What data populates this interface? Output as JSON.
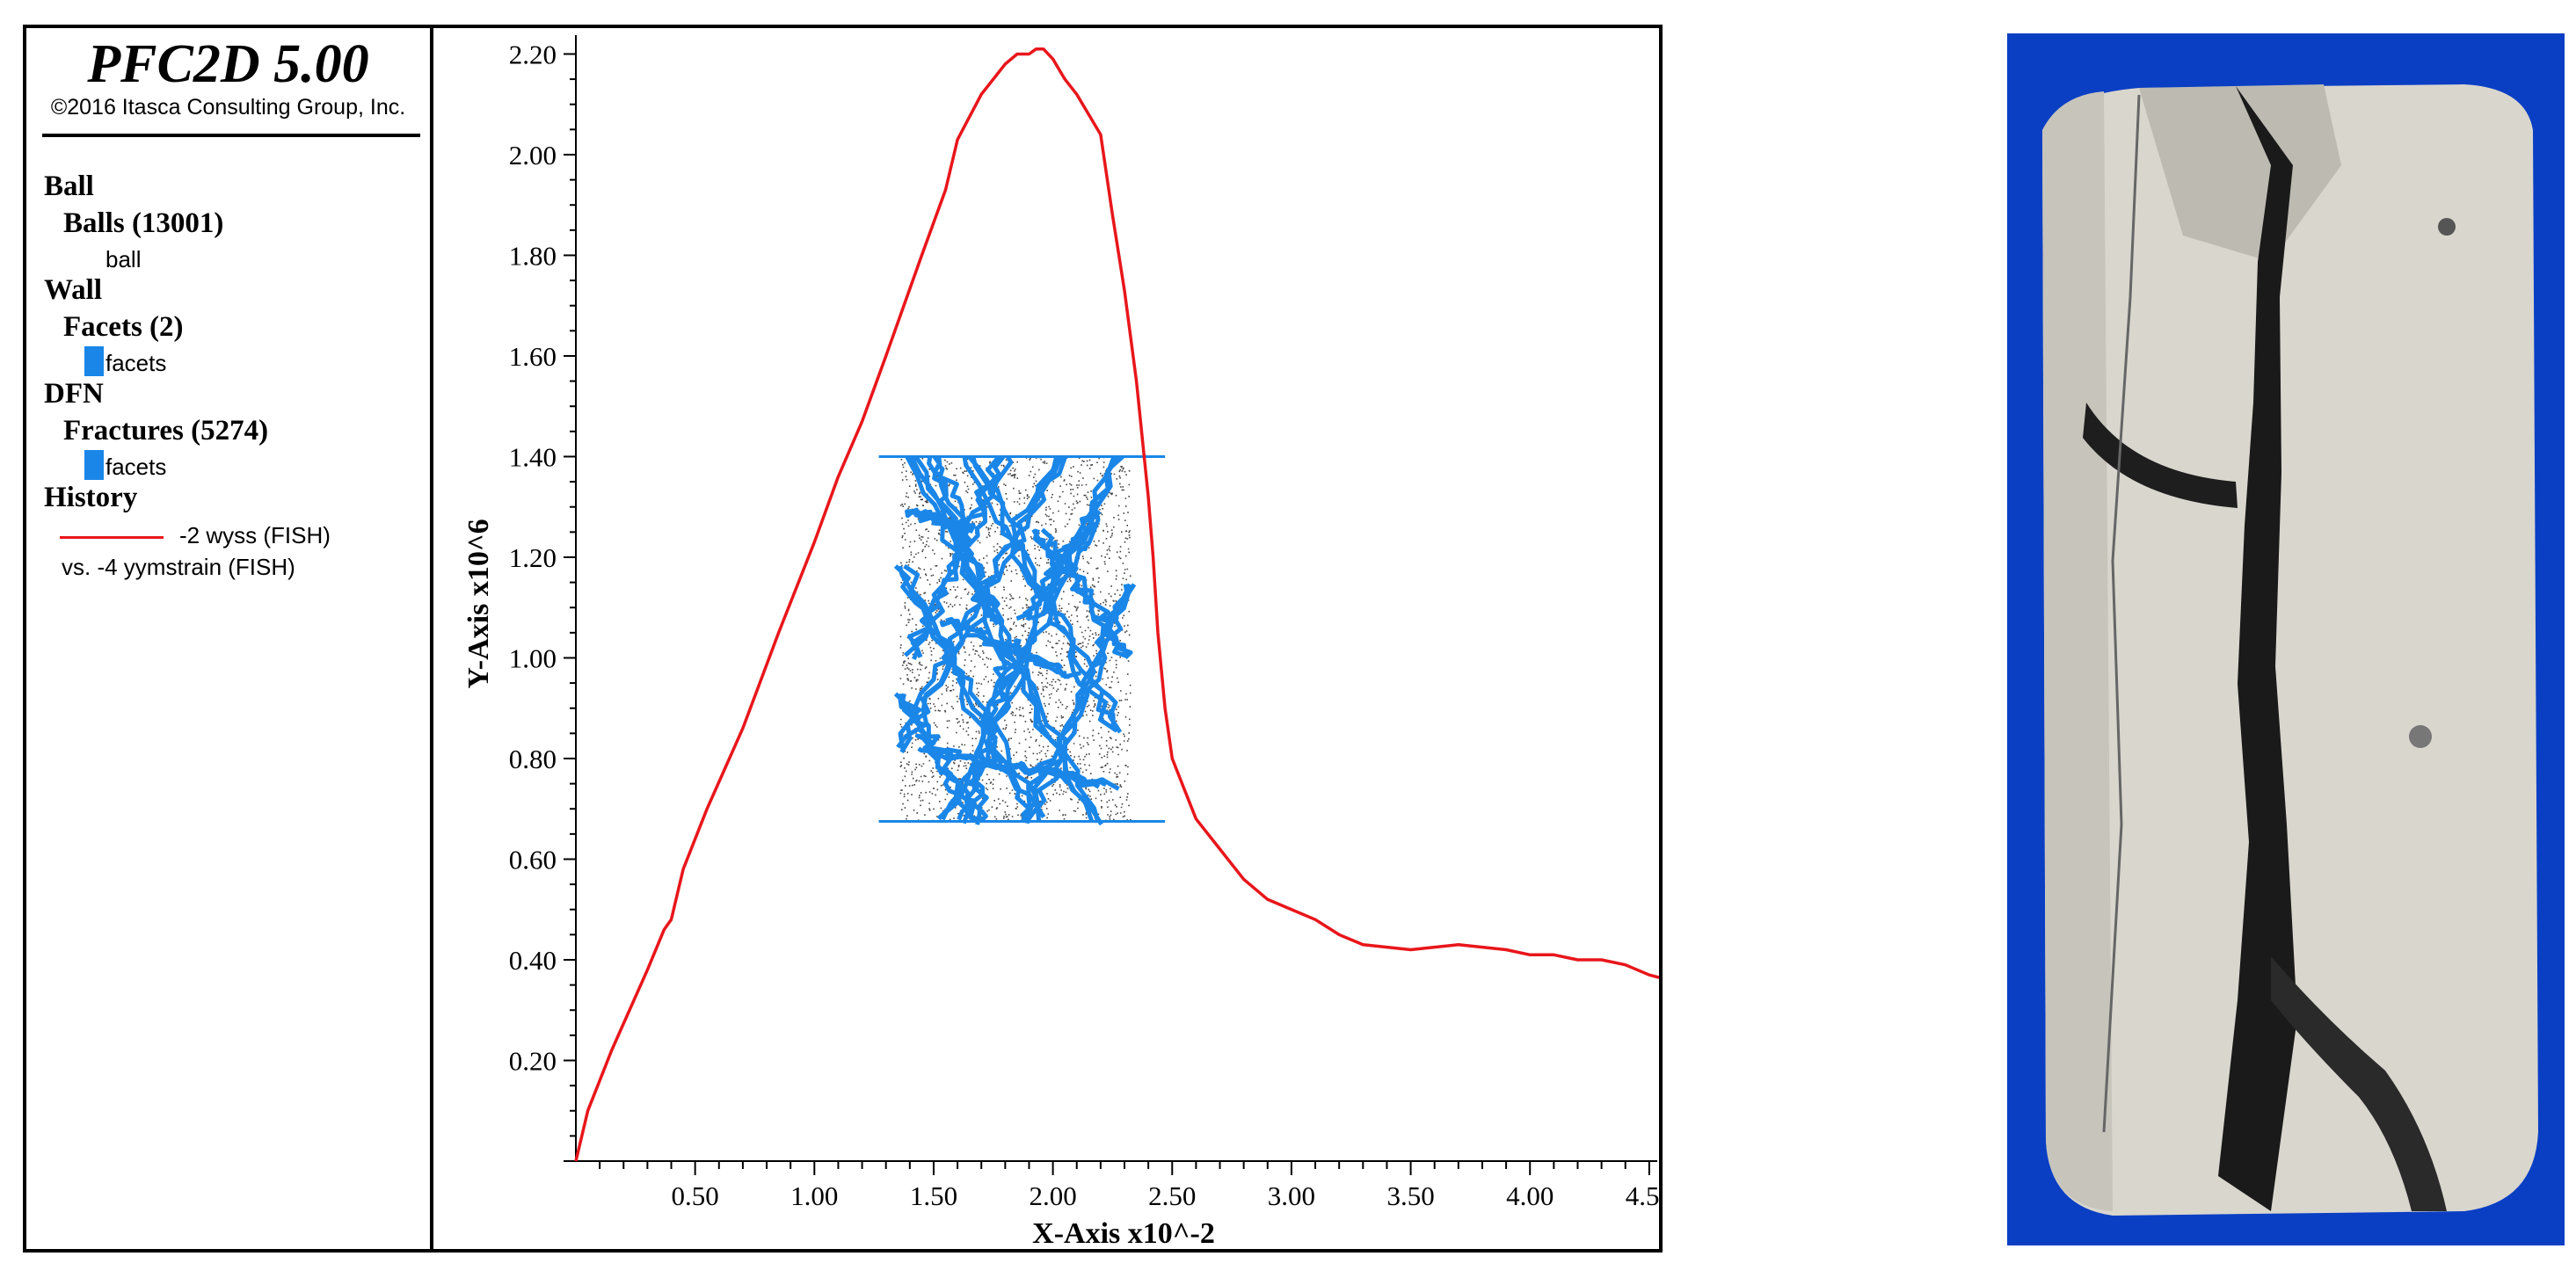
{
  "legend": {
    "app_title": "PFC2D 5.00",
    "copyright": "©2016 Itasca Consulting Group, Inc.",
    "groups": {
      "ball": {
        "header": "Ball",
        "sub": "Balls (13001)",
        "item": "ball"
      },
      "wall": {
        "header": "Wall",
        "sub": "Facets (2)",
        "item": "facets"
      },
      "dfn": {
        "header": "DFN",
        "sub": "Fractures (5274)",
        "item": "facets"
      },
      "history": {
        "header": "History",
        "line1": "-2 wyss (FISH)",
        "line2": "vs. -4 yymstrain (FISH)"
      }
    }
  },
  "colors": {
    "curve": "#e8161b",
    "fracture": "#1a86e8",
    "ball": "#444444",
    "photo_bg": "#0a3fc4"
  },
  "chart_data": {
    "type": "line",
    "xlabel": "X-Axis x10^-2",
    "ylabel": "Y-Axis x10^6",
    "xlim": [
      0,
      4.6
    ],
    "ylim": [
      0,
      2.22
    ],
    "x_ticks": [
      "0.50",
      "1.00",
      "1.50",
      "2.00",
      "2.50",
      "3.00",
      "3.50",
      "4.00",
      "4.50"
    ],
    "y_ticks": [
      "0.20",
      "0.40",
      "0.60",
      "0.80",
      "1.00",
      "1.20",
      "1.40",
      "1.60",
      "1.80",
      "2.00",
      "2.20"
    ],
    "series": [
      {
        "name": "-2 wyss (FISH) vs. -4 yymstrain (FISH)",
        "x": [
          0,
          0.05,
          0.15,
          0.3,
          0.37,
          0.4,
          0.45,
          0.55,
          0.7,
          0.85,
          1.0,
          1.1,
          1.2,
          1.3,
          1.45,
          1.55,
          1.6,
          1.7,
          1.8,
          1.85,
          1.9,
          1.93,
          1.96,
          2.0,
          2.05,
          2.1,
          2.2,
          2.25,
          2.3,
          2.35,
          2.4,
          2.42,
          2.44,
          2.47,
          2.5,
          2.55,
          2.6,
          2.7,
          2.8,
          2.9,
          3.0,
          3.1,
          3.2,
          3.3,
          3.5,
          3.7,
          3.9,
          4.0,
          4.1,
          4.2,
          4.3,
          4.4,
          4.5,
          4.58
        ],
        "y": [
          0,
          0.1,
          0.22,
          0.38,
          0.46,
          0.48,
          0.58,
          0.7,
          0.86,
          1.05,
          1.23,
          1.36,
          1.47,
          1.6,
          1.8,
          1.93,
          2.03,
          2.12,
          2.18,
          2.2,
          2.2,
          2.21,
          2.21,
          2.19,
          2.15,
          2.12,
          2.04,
          1.88,
          1.73,
          1.55,
          1.32,
          1.2,
          1.05,
          0.9,
          0.8,
          0.74,
          0.68,
          0.62,
          0.56,
          0.52,
          0.5,
          0.48,
          0.45,
          0.43,
          0.42,
          0.43,
          0.42,
          0.41,
          0.41,
          0.4,
          0.4,
          0.39,
          0.37,
          0.36
        ]
      }
    ],
    "grid": false,
    "legend_position": "left-panel",
    "inset": {
      "x_range": [
        1.27,
        2.47
      ],
      "y_range": [
        0.675,
        1.4
      ],
      "ball_count": 13001,
      "fracture_count": 5274
    }
  },
  "photo": {
    "subject": "cracked cylindrical rock specimen on blue background"
  }
}
